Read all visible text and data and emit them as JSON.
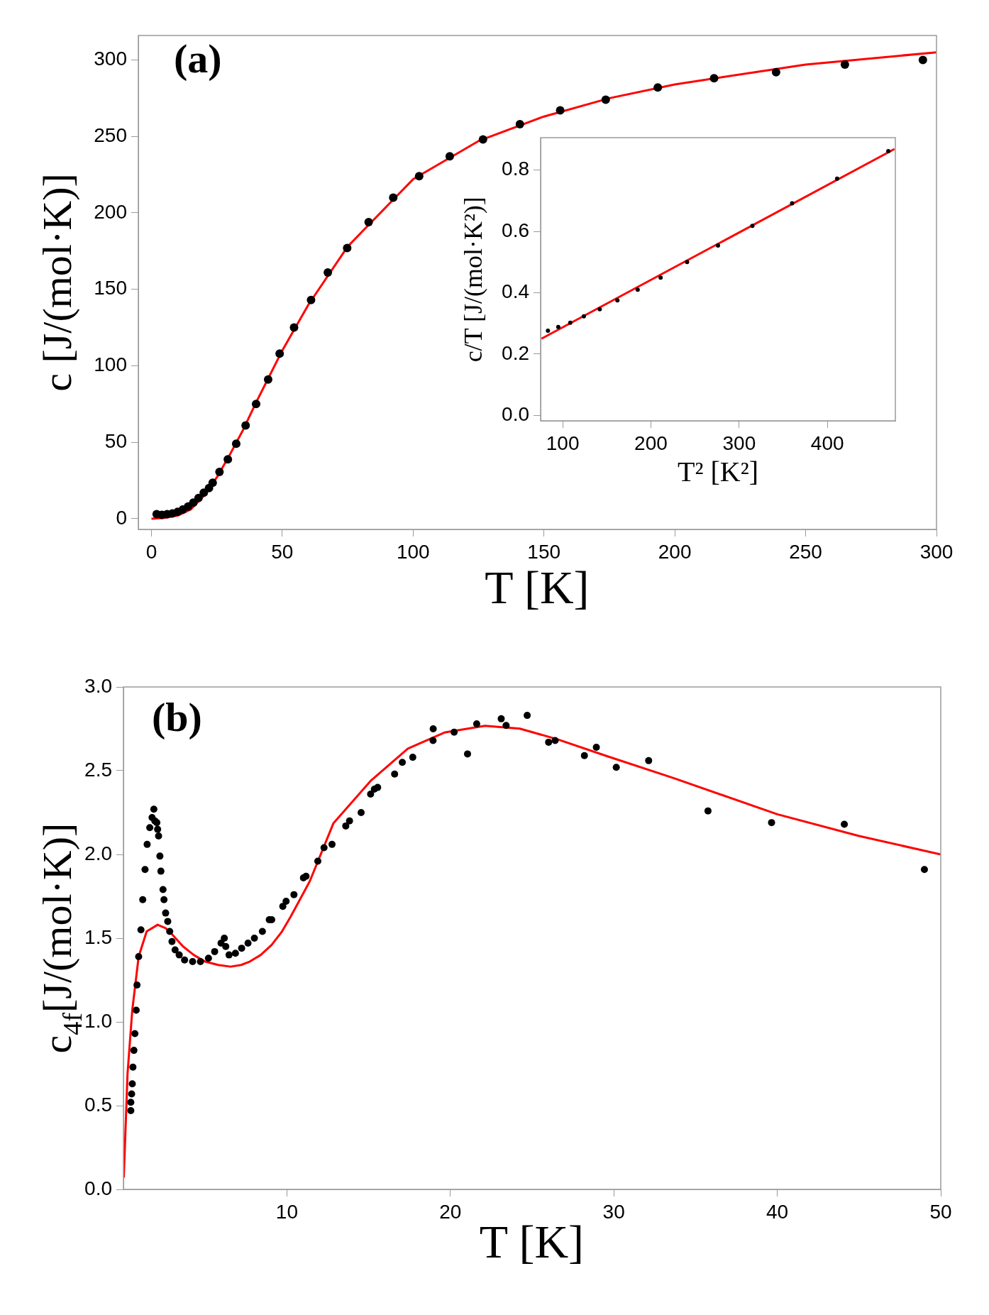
{
  "chart_data": [
    {
      "type": "scatter",
      "title": "(a)",
      "xlabel": "T [K]",
      "ylabel": "c [J/(mol·K)]",
      "xlim": [
        -5,
        300
      ],
      "ylim": [
        -7,
        316
      ],
      "xticks": [
        0,
        50,
        100,
        150,
        200,
        250,
        300
      ],
      "yticks": [
        0,
        50,
        100,
        150,
        200,
        250,
        300
      ],
      "grid": false,
      "legend": false,
      "series": [
        {
          "type": "scatter",
          "color": "#000000",
          "marker": "circle",
          "x": [
            2,
            4,
            6,
            8,
            10,
            12,
            14,
            16,
            18,
            20,
            22,
            23.4,
            26,
            29.2,
            32.4,
            36,
            40,
            44.6,
            49,
            54.5,
            61,
            67.4,
            74.8,
            83,
            92.4,
            102.3,
            114,
            126.7,
            140.8,
            156.2,
            173.6,
            193.5,
            215,
            238.7,
            265,
            294.8
          ],
          "values": [
            3,
            2.5,
            3,
            3.5,
            4.5,
            6,
            8,
            10.5,
            13.5,
            17,
            20,
            23.5,
            30.6,
            38.8,
            49,
            61,
            75,
            91,
            108,
            125,
            143,
            161,
            177,
            194,
            210,
            224,
            237,
            248,
            258,
            267,
            274,
            282,
            288,
            292,
            297,
            300
          ]
        },
        {
          "type": "line",
          "color": "#ff0000",
          "marker": "none",
          "line_style": "solid",
          "x": [
            0,
            5,
            10,
            15,
            20,
            25,
            30,
            35,
            40,
            45,
            50,
            60,
            75,
            100,
            125,
            150,
            175,
            200,
            250,
            300
          ],
          "values": [
            0,
            0.5,
            2,
            6,
            15,
            27,
            42,
            58,
            76,
            93,
            110,
            140,
            178,
            222,
            247,
            263,
            275,
            284,
            297,
            305
          ]
        }
      ]
    },
    {
      "type": "scatter",
      "xlabel": "T² [K²]",
      "ylabel": "c/T [J/(mol·K²)]",
      "xlim": [
        75,
        477
      ],
      "ylim": [
        -0.018,
        0.906
      ],
      "xticks": [
        100,
        200,
        300,
        400
      ],
      "yticks": [
        {
          "value": 0,
          "label": "0.0"
        },
        0.2,
        0.4,
        0.6,
        0.8
      ],
      "grid": false,
      "legend": false,
      "series": [
        {
          "type": "scatter",
          "color": "#000000",
          "marker": "circle",
          "x": [
            83.3,
            95,
            108.6,
            124,
            142,
            162,
            185,
            211,
            241,
            276,
            315,
            360,
            411,
            469
          ],
          "values": [
            0.276,
            0.288,
            0.302,
            0.323,
            0.346,
            0.375,
            0.41,
            0.449,
            0.5,
            0.554,
            0.618,
            0.692,
            0.772,
            0.862
          ]
        },
        {
          "type": "line",
          "color": "#ff0000",
          "marker": "none",
          "line_style": "solid",
          "x": [
            76,
            476
          ],
          "values": [
            0.25,
            0.869
          ]
        }
      ]
    },
    {
      "type": "scatter",
      "title": "(b)",
      "xlabel": "T [K]",
      "ylabel": "c$_{4f}$[J/(mol·K)]",
      "xlim": [
        0,
        50
      ],
      "ylim": [
        0,
        3
      ],
      "xticks": [
        10,
        20,
        30,
        40,
        50
      ],
      "yticks": [
        {
          "value": 0,
          "label": "0.0"
        },
        0.5,
        {
          "value": 1,
          "label": "1.0"
        },
        1.5,
        {
          "value": 2,
          "label": "2.0"
        },
        2.5,
        {
          "value": 3,
          "label": "3.0"
        }
      ],
      "grid": false,
      "legend": false,
      "series": [
        {
          "type": "scatter",
          "color": "#000000",
          "marker": "circle",
          "x": [
            0.45,
            0.45,
            0.5,
            0.54,
            0.58,
            0.64,
            0.7,
            0.78,
            0.83,
            0.93,
            1.07,
            1.18,
            1.32,
            1.45,
            1.61,
            1.75,
            1.86,
            1.92,
            2.04,
            2.09,
            2.15,
            2.23,
            2.29,
            2.42,
            2.48,
            2.58,
            2.71,
            2.83,
            2.97,
            3.16,
            3.41,
            3.74,
            4.23,
            4.71,
            5.2,
            5.58,
            5.97,
            6.17,
            6.26,
            6.46,
            6.85,
            7.23,
            7.62,
            8.01,
            8.5,
            8.92,
            9.07,
            9.75,
            9.95,
            10.43,
            11.01,
            11.17,
            11.89,
            12.27,
            12.76,
            13.6,
            13.83,
            14.54,
            15.12,
            15.35,
            15.55,
            16.59,
            17.06,
            17.7,
            18.94,
            18.95,
            20.23,
            21.05,
            21.61,
            23.11,
            23.41,
            24.7,
            26.01,
            26.41,
            28.2,
            28.93,
            30.15,
            32.13,
            35.76,
            39.65,
            44.1,
            49.0
          ],
          "values": [
            0.47,
            0.52,
            0.57,
            0.63,
            0.73,
            0.83,
            0.93,
            1.07,
            1.22,
            1.39,
            1.55,
            1.73,
            1.91,
            2.06,
            2.16,
            2.22,
            2.27,
            2.2,
            2.19,
            2.15,
            2.11,
            1.99,
            1.9,
            1.79,
            1.73,
            1.65,
            1.6,
            1.54,
            1.48,
            1.43,
            1.4,
            1.37,
            1.36,
            1.36,
            1.38,
            1.42,
            1.47,
            1.5,
            1.45,
            1.4,
            1.41,
            1.44,
            1.47,
            1.5,
            1.54,
            1.61,
            1.61,
            1.69,
            1.72,
            1.76,
            1.86,
            1.87,
            1.96,
            2.04,
            2.06,
            2.17,
            2.2,
            2.25,
            2.36,
            2.39,
            2.4,
            2.48,
            2.55,
            2.58,
            2.68,
            2.75,
            2.73,
            2.6,
            2.78,
            2.81,
            2.77,
            2.83,
            2.67,
            2.68,
            2.59,
            2.64,
            2.52,
            2.56,
            2.26,
            2.19,
            2.18,
            1.91
          ]
        },
        {
          "type": "line",
          "color": "#ff0000",
          "marker": "none",
          "line_style": "solid",
          "x": [
            0.02,
            0.25,
            0.54,
            0.93,
            1.42,
            2.09,
            2.58,
            3.0,
            3.65,
            4.3,
            5.0,
            5.8,
            6.55,
            7.2,
            7.72,
            8.4,
            9.07,
            9.7,
            10.24,
            11.4,
            12.84,
            15.12,
            17.4,
            19.68,
            22.12,
            24.25,
            26.53,
            29.58,
            33.65,
            40,
            45,
            50
          ],
          "values": [
            0.07,
            0.69,
            1.07,
            1.39,
            1.54,
            1.58,
            1.56,
            1.52,
            1.45,
            1.4,
            1.36,
            1.34,
            1.33,
            1.34,
            1.36,
            1.4,
            1.46,
            1.54,
            1.63,
            1.84,
            2.185,
            2.439,
            2.632,
            2.729,
            2.768,
            2.751,
            2.688,
            2.587,
            2.456,
            2.24,
            2.11,
            2.0
          ]
        }
      ]
    }
  ]
}
